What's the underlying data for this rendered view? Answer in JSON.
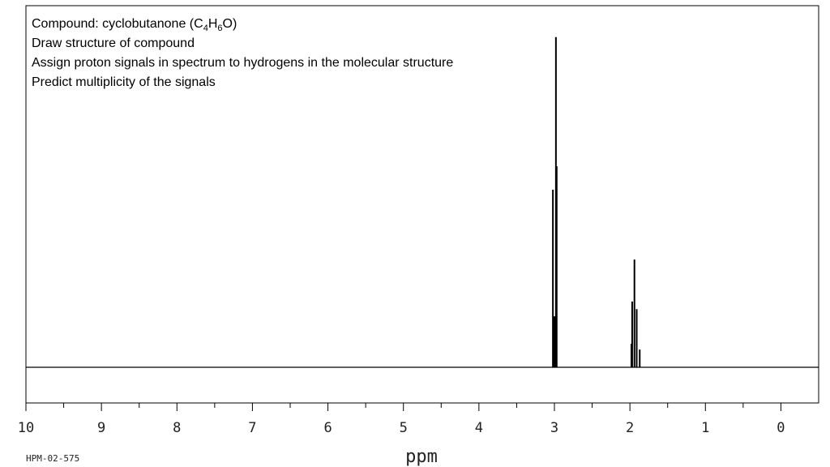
{
  "chart_data": {
    "type": "spectrum",
    "title": [
      "Compound: cyclobutanone (C",
      "4",
      "H",
      "6",
      "O)"
    ],
    "title_color": "#e8141c",
    "annotations": [
      "Draw structure of compound",
      "Assign proton signals in spectrum to hydrogens in the molecular structure",
      "Predict multiplicity of the signals"
    ],
    "xlabel": "ppm",
    "code": "HPM-02-575",
    "x": [
      3.02,
      3.0,
      2.98,
      2.97,
      1.98,
      1.97,
      1.94,
      1.91,
      1.87
    ],
    "values": [
      49.1,
      14.1,
      91.3,
      55.6,
      6.5,
      18.2,
      29.8,
      16.1,
      4.9
    ],
    "color": "#000000",
    "xlim": [
      10,
      -0.5
    ],
    "ylim": [
      0,
      100
    ],
    "xticks": [
      10,
      9,
      8,
      7,
      6,
      5,
      4,
      3,
      2,
      1,
      0
    ],
    "xminorticks": [
      9.5,
      8.5,
      7.5,
      6.5,
      5.5,
      4.5,
      3.5,
      2.5,
      1.5,
      0.5
    ]
  }
}
